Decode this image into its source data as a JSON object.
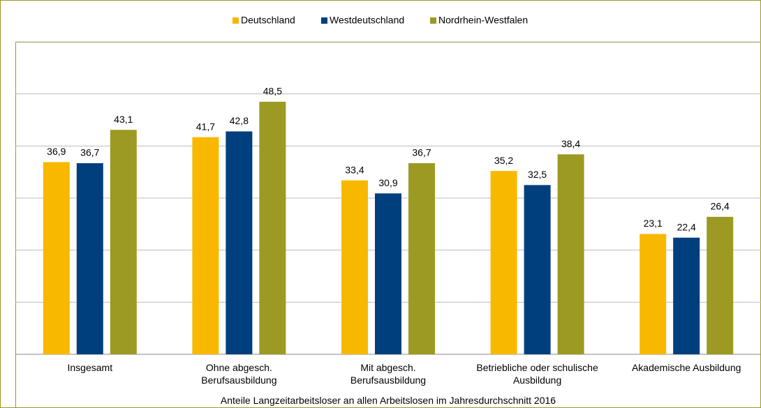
{
  "chart_data": {
    "type": "bar",
    "title": "Anteile Langzeitarbeitsloser an allen Arbeitslosen im Jahresdurchschnitt 2016",
    "categories": [
      "Insgesamt",
      "Ohne abgesch.\nBerufsausbildung",
      "Mit abgesch.\nBerufsausbildung",
      "Betriebliche oder schulische\nAusbildung",
      "Akademische Ausbildung"
    ],
    "series": [
      {
        "name": "Deutschland",
        "color": "#f9b800",
        "values": [
          36.9,
          41.7,
          33.4,
          35.2,
          23.1
        ],
        "value_labels": [
          "36,9",
          "41,7",
          "33,4",
          "35,2",
          "23,1"
        ]
      },
      {
        "name": "Westdeutschland",
        "color": "#003f7d",
        "values": [
          36.7,
          42.8,
          30.9,
          32.5,
          22.4
        ],
        "value_labels": [
          "36,7",
          "42,8",
          "30,9",
          "32,5",
          "22,4"
        ]
      },
      {
        "name": "Nordrhein-Westfalen",
        "color": "#9c9a23",
        "values": [
          43.1,
          48.5,
          36.7,
          38.4,
          26.4
        ],
        "value_labels": [
          "43,1",
          "48,5",
          "36,7",
          "38,4",
          "26,4"
        ]
      }
    ],
    "ylim": [
      0,
      60
    ],
    "yticks": [
      0,
      10,
      20,
      30,
      40,
      50,
      60
    ],
    "grid": true
  }
}
